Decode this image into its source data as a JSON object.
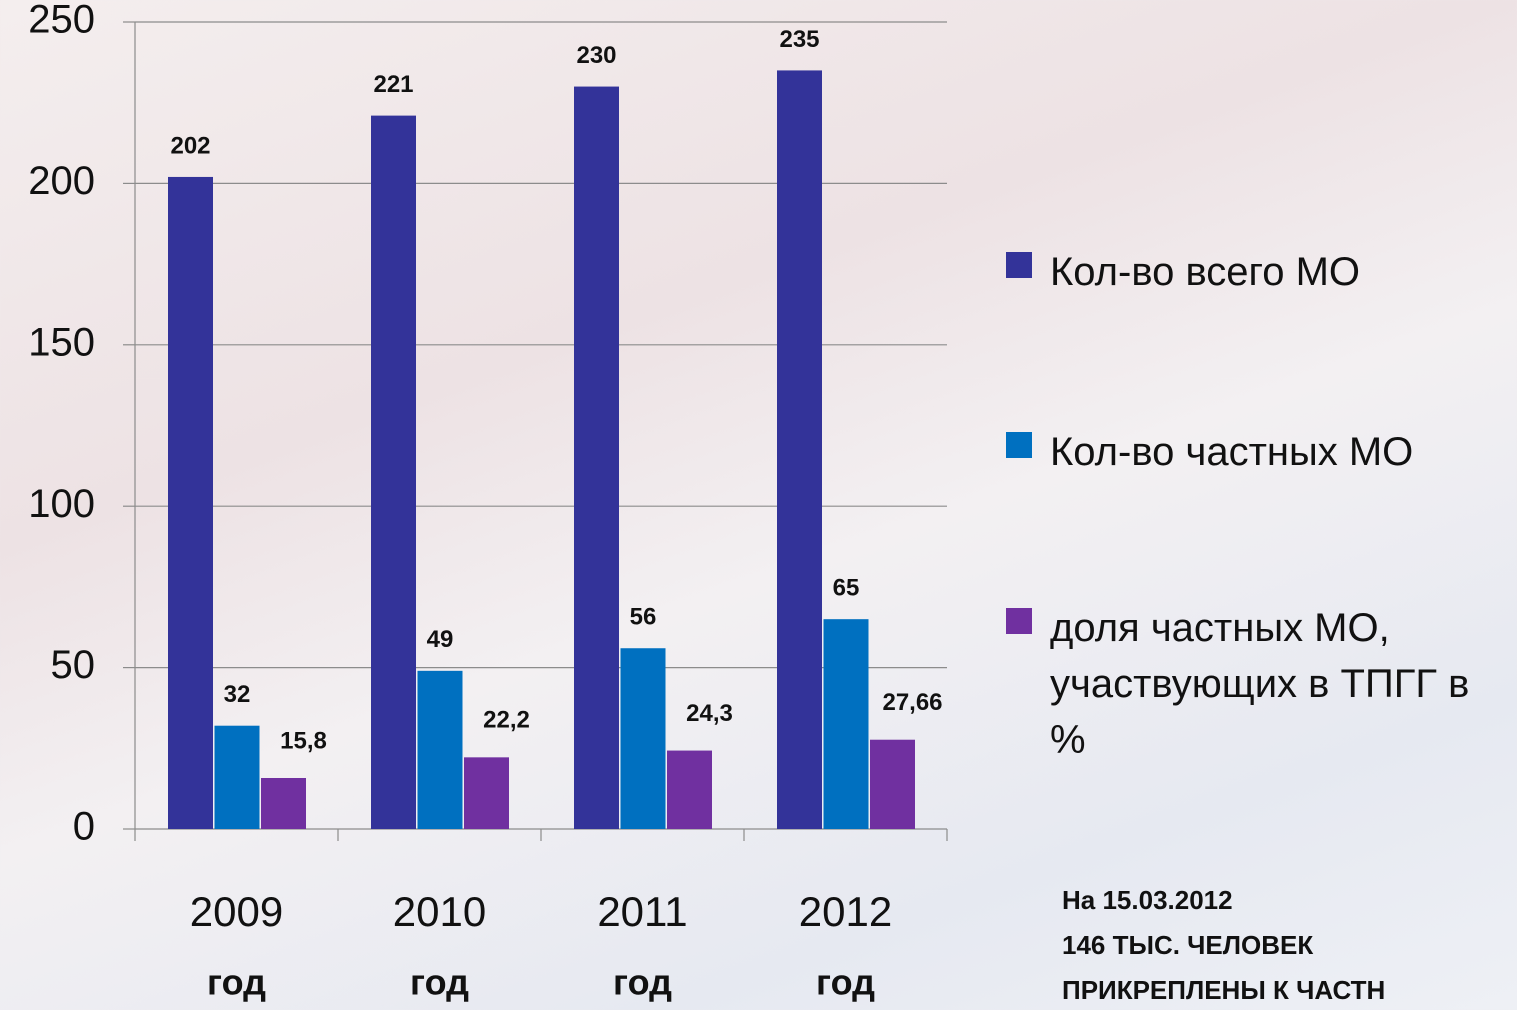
{
  "chart_data": {
    "type": "bar",
    "categories": [
      "2009",
      "2010",
      "2011",
      "2012"
    ],
    "category_sublabels": [
      "год",
      "год",
      "год",
      "год"
    ],
    "series": [
      {
        "name": "Кол-во всего МО",
        "color": "#333399",
        "values": [
          202,
          221,
          230,
          235
        ]
      },
      {
        "name": "Кол-во частных МО",
        "color": "#0070c0",
        "values": [
          32,
          49,
          56,
          65
        ]
      },
      {
        "name": "доля частных МО, участвующих в ТПГГ в %",
        "color": "#7030a0",
        "values": [
          15.8,
          22.2,
          24.3,
          27.66
        ],
        "value_labels": [
          "15,8",
          "22,2",
          "24,3",
          "27,66"
        ]
      }
    ],
    "ylim": [
      0,
      250
    ],
    "yticks": [
      0,
      50,
      100,
      150,
      200,
      250
    ],
    "grid": true,
    "legend": "right",
    "annotations": [
      "На 15.03.2012",
      "146 ТЫС. ЧЕЛОВЕК",
      "ПРИКРЕПЛЕНЫ К ЧАСТН"
    ]
  }
}
